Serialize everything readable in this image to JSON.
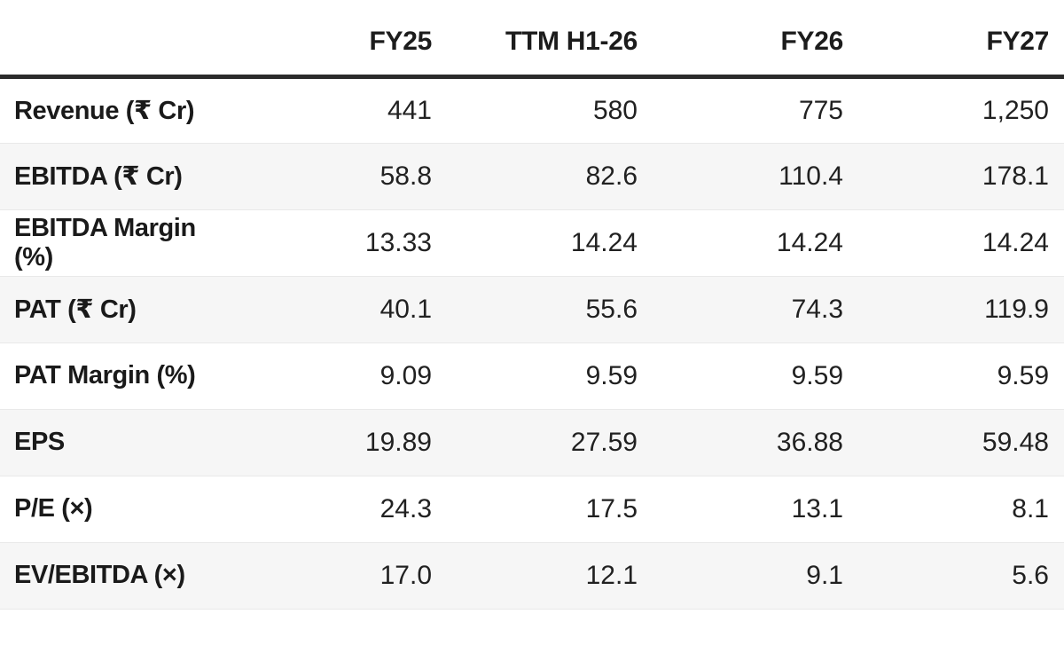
{
  "table": {
    "columns": [
      "FY25",
      "TTM H1-26",
      "FY26",
      "FY27"
    ],
    "rows": [
      {
        "label": "Revenue (₹ Cr)",
        "values": [
          "441",
          "580",
          "775",
          "1,250"
        ]
      },
      {
        "label": "EBITDA (₹ Cr)",
        "values": [
          "58.8",
          "82.6",
          "110.4",
          "178.1"
        ]
      },
      {
        "label": "EBITDA Margin (%)",
        "values": [
          "13.33",
          "14.24",
          "14.24",
          "14.24"
        ]
      },
      {
        "label": "PAT (₹ Cr)",
        "values": [
          "40.1",
          "55.6",
          "74.3",
          "119.9"
        ]
      },
      {
        "label": "PAT Margin (%)",
        "values": [
          "9.09",
          "9.59",
          "9.59",
          "9.59"
        ]
      },
      {
        "label": "EPS",
        "values": [
          "19.89",
          "27.59",
          "36.88",
          "59.48"
        ]
      },
      {
        "label": "P/E (×)",
        "values": [
          "24.3",
          "17.5",
          "13.1",
          "8.1"
        ]
      },
      {
        "label": "EV/EBITDA (×)",
        "values": [
          "17.0",
          "12.1",
          "9.1",
          "5.6"
        ]
      }
    ]
  },
  "colors": {
    "background": "#ffffff",
    "stripe": "#f6f6f6",
    "row_divider": "#e9e9e9",
    "header_border": "#2b2b2b",
    "header_text": "#1c1c1c",
    "label_text": "#1a1a1a",
    "value_text": "#212121"
  },
  "chart_data": {
    "type": "table",
    "columns": [
      "",
      "FY25",
      "TTM H1-26",
      "FY26",
      "FY27"
    ],
    "rows": [
      [
        "Revenue (₹ Cr)",
        441,
        580,
        775,
        1250
      ],
      [
        "EBITDA (₹ Cr)",
        58.8,
        82.6,
        110.4,
        178.1
      ],
      [
        "EBITDA Margin (%)",
        13.33,
        14.24,
        14.24,
        14.24
      ],
      [
        "PAT (₹ Cr)",
        40.1,
        55.6,
        74.3,
        119.9
      ],
      [
        "PAT Margin (%)",
        9.09,
        9.59,
        9.59,
        9.59
      ],
      [
        "EPS",
        19.89,
        27.59,
        36.88,
        59.48
      ],
      [
        "P/E (×)",
        24.3,
        17.5,
        13.1,
        8.1
      ],
      [
        "EV/EBITDA (×)",
        17.0,
        12.1,
        9.1,
        5.6
      ]
    ],
    "title": "",
    "layout_hints": {
      "zebra_striping": "even rows light gray",
      "value_alignment": "right",
      "label_alignment": "left",
      "header_separator": "thick dark rule"
    }
  }
}
